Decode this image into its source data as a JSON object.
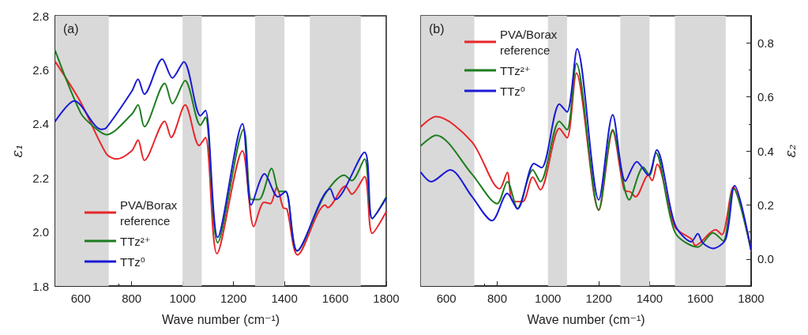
{
  "chart_data": [
    {
      "type": "line",
      "xlabel": "Wave number (cm⁻¹)",
      "ylabel": "ε₁",
      "annotations": [
        "(a)"
      ],
      "xlim": [
        500,
        1800
      ],
      "xticks": [
        600,
        800,
        1000,
        1200,
        1400,
        1600,
        1800
      ],
      "ylim": [
        1.8,
        2.8
      ],
      "yticks": [
        1.8,
        {
          "value": 2,
          "label": "2.0"
        },
        2.2,
        2.4,
        2.6,
        2.8
      ],
      "grid": false,
      "legend": "bottom left",
      "marker": "none",
      "line_style": "solid",
      "bands": [
        {
          "axis": "x",
          "from": 500,
          "to": 710,
          "color": "#d9d9d9"
        },
        {
          "axis": "x",
          "from": 1000,
          "to": 1075,
          "color": "#d9d9d9"
        },
        {
          "axis": "x",
          "from": 1285,
          "to": 1400,
          "color": "#d9d9d9"
        },
        {
          "axis": "x",
          "from": 1500,
          "to": 1700,
          "color": "#d9d9d9"
        }
      ],
      "series": [
        {
          "name": "PVA/Borax reference",
          "color": "#e8262a",
          "x": [
            500,
            600,
            700,
            740,
            800,
            825,
            850,
            930,
            955,
            1010,
            1065,
            1090,
            1135,
            1235,
            1280,
            1320,
            1345,
            1370,
            1395,
            1410,
            1452,
            1560,
            1570,
            1640,
            1665,
            1715,
            1745,
            1800
          ],
          "values": [
            2.63,
            2.48,
            2.29,
            2.27,
            2.3,
            2.34,
            2.265,
            2.41,
            2.35,
            2.47,
            2.32,
            2.35,
            1.92,
            2.3,
            2.02,
            2.11,
            2.105,
            2.165,
            2.09,
            2.085,
            1.915,
            2.1,
            2.09,
            2.17,
            2.14,
            2.205,
            1.995,
            2.075
          ]
        },
        {
          "name": "TTz²⁺",
          "color": "#1e7d1e",
          "x": [
            500,
            600,
            650,
            700,
            800,
            825,
            850,
            930,
            960,
            1010,
            1070,
            1090,
            1138,
            1240,
            1270,
            1300,
            1350,
            1380,
            1405,
            1450,
            1560,
            1635,
            1665,
            1715,
            1745,
            1800
          ],
          "values": [
            2.67,
            2.44,
            2.39,
            2.36,
            2.435,
            2.47,
            2.39,
            2.55,
            2.475,
            2.56,
            2.395,
            2.425,
            1.96,
            2.38,
            2.12,
            2.12,
            2.235,
            2.15,
            2.15,
            1.93,
            2.14,
            2.21,
            2.19,
            2.27,
            2.05,
            2.13
          ]
        },
        {
          "name": "TTz⁰",
          "color": "#1a1ad6",
          "x": [
            500,
            575,
            680,
            700,
            800,
            825,
            850,
            920,
            960,
            1005,
            1070,
            1090,
            1138,
            1235,
            1270,
            1322,
            1375,
            1405,
            1450,
            1580,
            1600,
            1715,
            1745,
            1800
          ],
          "values": [
            2.41,
            2.485,
            2.38,
            2.385,
            2.52,
            2.565,
            2.51,
            2.64,
            2.57,
            2.63,
            2.43,
            2.45,
            1.98,
            2.4,
            2.1,
            2.215,
            2.13,
            2.15,
            1.93,
            2.16,
            2.12,
            2.295,
            2.05,
            2.125
          ]
        }
      ]
    },
    {
      "type": "line",
      "xlabel": "Wave number (cm⁻¹)",
      "y2label": "ε₂",
      "annotations": [
        "(b)"
      ],
      "xlim": [
        500,
        1800
      ],
      "xticks": [
        600,
        800,
        1000,
        1200,
        1400,
        1600,
        1800
      ],
      "y2lim": [
        -0.1,
        0.9
      ],
      "y2ticks": [
        {
          "value": 0,
          "label": "0.0"
        },
        0.2,
        0.4,
        0.6,
        0.8
      ],
      "grid": false,
      "legend": "top left",
      "marker": "none",
      "line_style": "solid",
      "bands": [
        {
          "axis": "x",
          "from": 500,
          "to": 710,
          "color": "#d9d9d9"
        },
        {
          "axis": "x",
          "from": 1000,
          "to": 1075,
          "color": "#d9d9d9"
        },
        {
          "axis": "x",
          "from": 1285,
          "to": 1400,
          "color": "#d9d9d9"
        },
        {
          "axis": "x",
          "from": 1500,
          "to": 1700,
          "color": "#d9d9d9"
        }
      ],
      "series": [
        {
          "name": "PVA/Borax reference",
          "color": "#e8262a",
          "axis": "y2",
          "x": [
            500,
            560,
            700,
            810,
            840,
            860,
            900,
            940,
            970,
            1045,
            1075,
            1112,
            1200,
            1255,
            1300,
            1325,
            1345,
            1395,
            1410,
            1430,
            1500,
            1565,
            1580,
            1660,
            1685,
            1730,
            1800
          ],
          "values": [
            0.49,
            0.527,
            0.434,
            0.26,
            0.32,
            0.215,
            0.212,
            0.303,
            0.256,
            0.483,
            0.448,
            0.688,
            0.18,
            0.473,
            0.256,
            0.248,
            0.23,
            0.31,
            0.29,
            0.35,
            0.118,
            0.074,
            0.05,
            0.108,
            0.09,
            0.266,
            0.03
          ]
        },
        {
          "name": "TTz²⁺",
          "color": "#1e7d1e",
          "axis": "y2",
          "x": [
            500,
            560,
            700,
            800,
            840,
            880,
            940,
            970,
            1045,
            1075,
            1112,
            1200,
            1255,
            1320,
            1375,
            1400,
            1425,
            1500,
            1590,
            1650,
            1690,
            1730,
            1800
          ],
          "values": [
            0.42,
            0.458,
            0.315,
            0.205,
            0.286,
            0.187,
            0.33,
            0.286,
            0.51,
            0.478,
            0.724,
            0.182,
            0.478,
            0.219,
            0.34,
            0.31,
            0.393,
            0.099,
            0.044,
            0.097,
            0.067,
            0.261,
            0.032
          ]
        },
        {
          "name": "TTz⁰",
          "color": "#1a1ad6",
          "axis": "y2",
          "x": [
            500,
            540,
            615,
            700,
            780,
            840,
            880,
            945,
            975,
            1045,
            1075,
            1115,
            1200,
            1255,
            1305,
            1350,
            1395,
            1428,
            1500,
            1565,
            1590,
            1610,
            1650,
            1700,
            1735,
            1800
          ],
          "values": [
            0.32,
            0.286,
            0.33,
            0.232,
            0.142,
            0.243,
            0.185,
            0.353,
            0.338,
            0.573,
            0.544,
            0.778,
            0.219,
            0.534,
            0.288,
            0.36,
            0.31,
            0.404,
            0.128,
            0.064,
            0.094,
            0.059,
            0.039,
            0.074,
            0.271,
            0.034
          ]
        }
      ]
    }
  ]
}
